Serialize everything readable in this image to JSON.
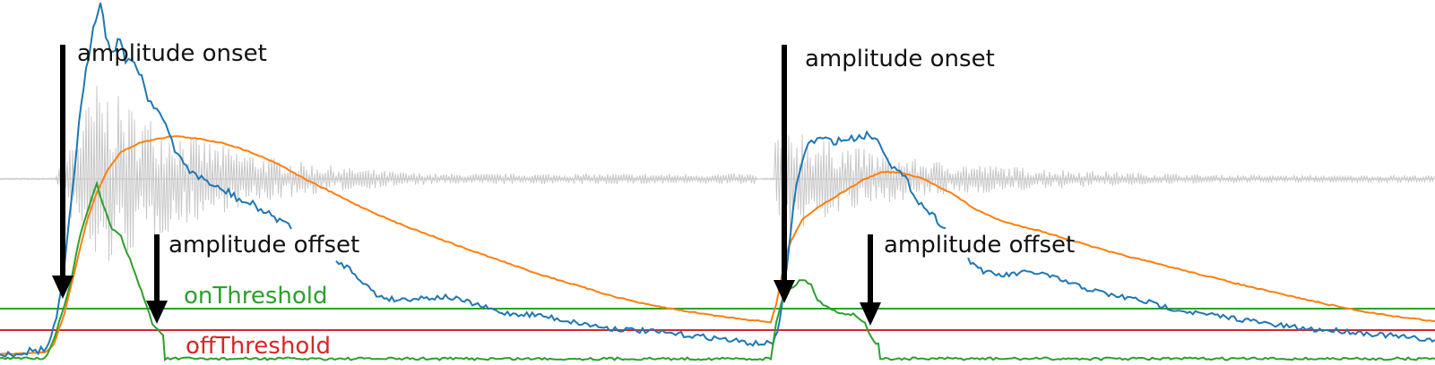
{
  "labels": {
    "onset_1": "amplitude onset",
    "offset_1": "amplitude offset",
    "onset_2": "amplitude onset",
    "offset_2": "amplitude offset",
    "on_threshold": "onThreshold",
    "off_threshold": "offThreshold"
  },
  "colors": {
    "waveform": "#c8c8c8",
    "fast_envelope": "#1f77b4",
    "slow_envelope": "#ff7f0e",
    "detection": "#2ca02c",
    "on_threshold": "#2ca02c",
    "off_threshold": "#d62728",
    "arrow": "#000000"
  }
}
